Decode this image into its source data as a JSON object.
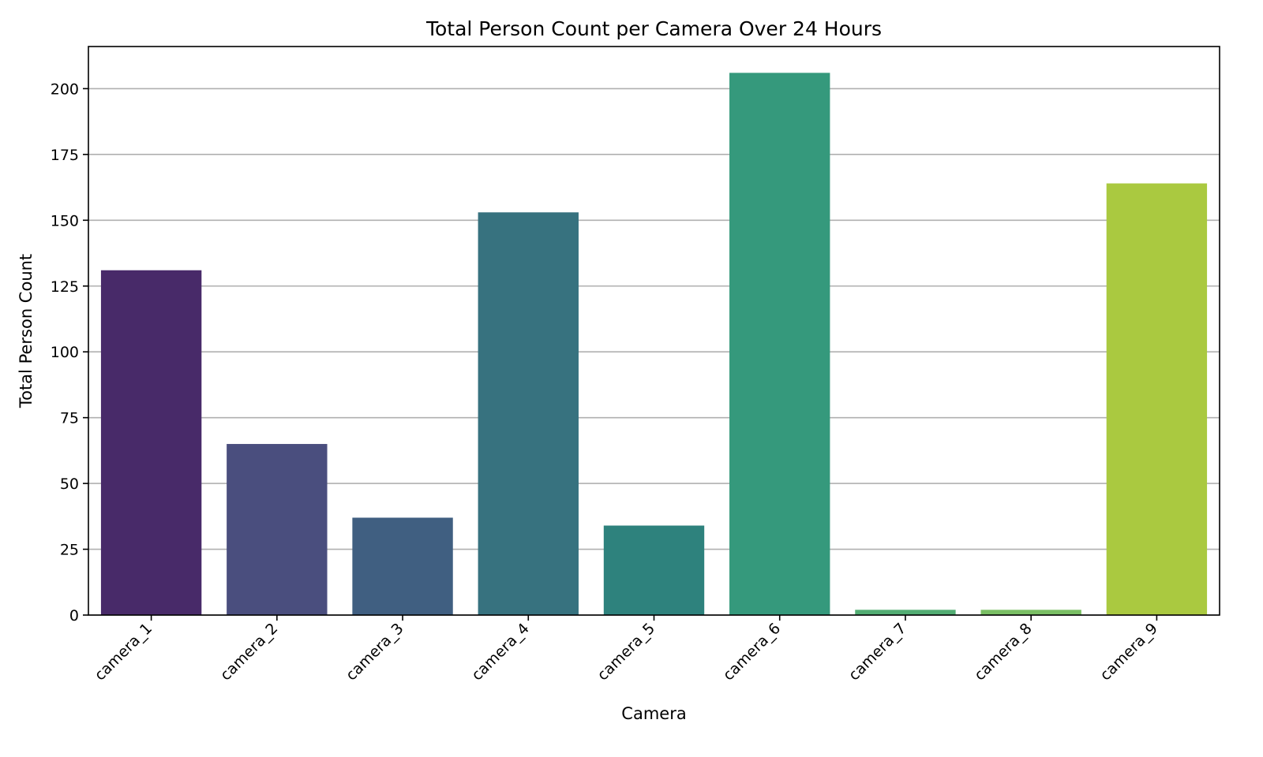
{
  "chart_data": {
    "type": "bar",
    "title": "Total Person Count per Camera Over 24 Hours",
    "xlabel": "Camera",
    "ylabel": "Total Person Count",
    "categories": [
      "camera_1",
      "camera_2",
      "camera_3",
      "camera_4",
      "camera_5",
      "camera_6",
      "camera_7",
      "camera_8",
      "camera_9"
    ],
    "values": [
      131,
      65,
      37,
      153,
      34,
      206,
      2,
      2,
      164
    ],
    "colors": [
      "#482a69",
      "#4a4e7e",
      "#405f81",
      "#37727f",
      "#2e827d",
      "#35997c",
      "#52ad73",
      "#7abf64",
      "#aac940"
    ],
    "ylim": [
      0,
      216
    ],
    "yticks": [
      0,
      25,
      50,
      75,
      100,
      125,
      150,
      175,
      200
    ],
    "grid": "y"
  }
}
